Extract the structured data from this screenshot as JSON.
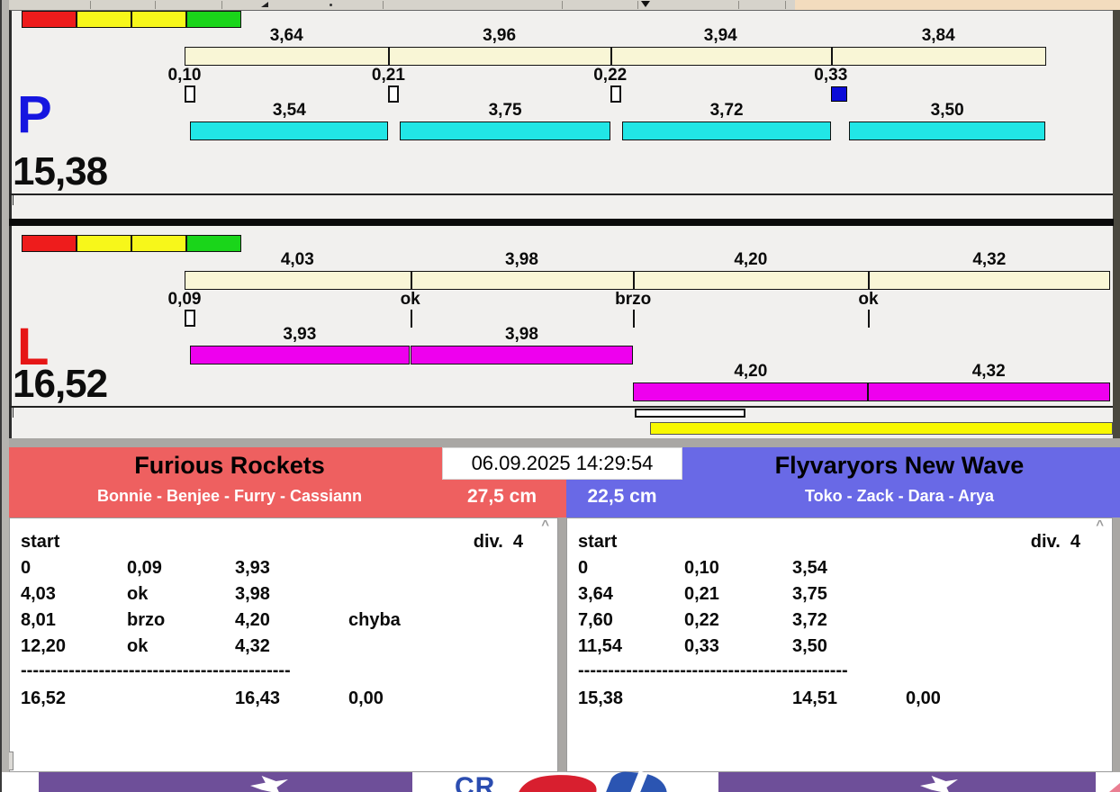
{
  "colors": {
    "panel_bg": "#f1f0ee",
    "toolbar_bg": "#d6d3cb",
    "peach": "#f3dcbe",
    "band_gray": "#a9a7a4",
    "dark_strip": "#4a483f",
    "cream_bar": "#f9f6d6",
    "cyan_bar": "#21e6e6",
    "magenta_bar": "#ee00ee",
    "yellow_bar": "#f8f800",
    "blue_square": "#0b0bd8",
    "team_red": "#ee6060",
    "team_blue": "#6969e6",
    "purple_band": "#6e4f99",
    "status_red": "#ee1c1c",
    "status_yellow": "#f7f71a",
    "status_green": "#1ad51a"
  },
  "lanes": [
    {
      "id": "P",
      "letter": "P",
      "letter_color": "#1616e0",
      "total": "15,38",
      "bar_color": "#21e6e6",
      "status_squares": [
        "#ee1c1c",
        "#f7f71a",
        "#f7f71a",
        "#1ad51a"
      ],
      "segments": [
        {
          "label": "3,64",
          "dur": 3.64
        },
        {
          "label": "3,96",
          "dur": 3.96
        },
        {
          "label": "3,94",
          "dur": 3.94
        },
        {
          "label": "3,84",
          "dur": 3.84
        }
      ],
      "markers": [
        {
          "label": "0,10",
          "type": "square"
        },
        {
          "label": "0,21",
          "type": "square"
        },
        {
          "label": "0,22",
          "type": "square"
        },
        {
          "label": "0,33",
          "type": "square-filled"
        }
      ],
      "run_rows": [
        [
          {
            "label": "3,54",
            "start": 0.1,
            "dur": 3.54
          },
          {
            "label": "3,75",
            "start": 3.85,
            "dur": 3.75
          },
          {
            "label": "3,72",
            "start": 7.82,
            "dur": 3.72
          },
          {
            "label": "3,50",
            "start": 11.87,
            "dur": 3.5
          }
        ]
      ],
      "extras": []
    },
    {
      "id": "L",
      "letter": "L",
      "letter_color": "#e61616",
      "total": "16,52",
      "bar_color": "#ee00ee",
      "status_squares": [
        "#ee1c1c",
        "#f7f71a",
        "#f7f71a",
        "#1ad51a"
      ],
      "segments": [
        {
          "label": "4,03",
          "dur": 4.03
        },
        {
          "label": "3,98",
          "dur": 3.98
        },
        {
          "label": "4,20",
          "dur": 4.2
        },
        {
          "label": "4,32",
          "dur": 4.32
        }
      ],
      "markers": [
        {
          "label": "0,09",
          "type": "square"
        },
        {
          "label": "ok",
          "type": "tick"
        },
        {
          "label": "brzo",
          "type": "tick"
        },
        {
          "label": "ok",
          "type": "tick"
        }
      ],
      "run_rows": [
        [
          {
            "label": "3,93",
            "start": 0.09,
            "dur": 3.93
          },
          {
            "label": "3,98",
            "start": 4.03,
            "dur": 3.98
          }
        ],
        [
          {
            "label": "4,20",
            "start": 8.01,
            "dur": 4.2
          },
          {
            "label": "4,32",
            "start": 12.2,
            "dur": 4.32
          }
        ]
      ],
      "extras": [
        {
          "type": "outline",
          "start": 8.04,
          "end": 10.02
        },
        {
          "type": "yellow",
          "start": 8.31,
          "end": 16.58
        }
      ]
    }
  ],
  "header": {
    "timestamp": "06.09.2025 14:29:54"
  },
  "teams": [
    {
      "name": "Furious Rockets",
      "members": "Bonnie - Benjee - Furry - Cassiann",
      "distance": "27,5 cm"
    },
    {
      "name": "Flyvaryors New Wave",
      "members": "Toko - Zack - Dara - Arya",
      "distance": "22,5 cm"
    }
  ],
  "tables": [
    {
      "header": "start",
      "division": "div.  4",
      "rows": [
        [
          "0",
          "0,09",
          "3,93",
          ""
        ],
        [
          "4,03",
          "ok",
          "3,98",
          ""
        ],
        [
          "8,01",
          "brzo",
          "4,20",
          "chyba"
        ],
        [
          "12,20",
          "ok",
          "4,32",
          ""
        ]
      ],
      "separator": "---------------------------------------------",
      "totals": [
        "16,52",
        "",
        "16,43",
        "0,00"
      ],
      "scroll_arrow": "^"
    },
    {
      "header": "start",
      "division": "div.  4",
      "rows": [
        [
          "0",
          "0,10",
          "3,54",
          ""
        ],
        [
          "3,64",
          "0,21",
          "3,75",
          ""
        ],
        [
          "7,60",
          "0,22",
          "3,72",
          ""
        ],
        [
          "11,54",
          "0,33",
          "3,50",
          ""
        ]
      ],
      "separator": "---------------------------------------------",
      "totals": [
        "15,38",
        "",
        "14,51",
        "0,00"
      ],
      "scroll_arrow": "^"
    }
  ],
  "logo": {
    "text": "CR"
  }
}
